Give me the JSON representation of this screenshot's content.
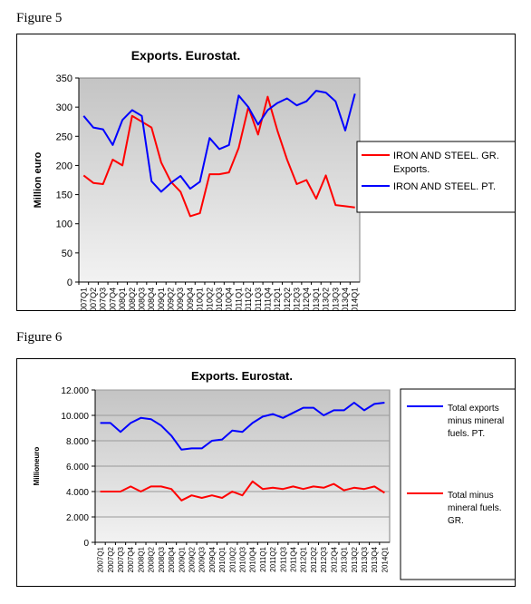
{
  "figures": [
    {
      "label": "Figure 5"
    },
    {
      "label": "Figure 6"
    }
  ],
  "chart_data": [
    {
      "type": "line",
      "title": "Exports. Eurostat.",
      "ylabel": "Million euro",
      "xlabel": "",
      "ylim": [
        0,
        350
      ],
      "yticks": [
        0,
        50,
        100,
        150,
        200,
        250,
        300,
        350
      ],
      "ytick_labels": [
        "0",
        "50",
        "100",
        "150",
        "200",
        "250",
        "300",
        "350"
      ],
      "grid": false,
      "legend_position": "right",
      "categories": [
        "2007Q1",
        "2007Q2",
        "2007Q3",
        "2007Q4",
        "2008Q1",
        "2008Q2",
        "2008Q3",
        "2008Q4",
        "2009Q1",
        "2009Q2",
        "2009Q3",
        "2009Q4",
        "2010Q1",
        "2010Q2",
        "2010Q3",
        "2010Q4",
        "2011Q1",
        "2011Q2",
        "2011Q3",
        "2011Q4",
        "2012Q1",
        "2012Q2",
        "2012Q3",
        "2012Q4",
        "2013Q1",
        "2013Q2",
        "2013Q3",
        "2013Q4",
        "2014Q1"
      ],
      "series": [
        {
          "name": "IRON AND STEEL. GR. Exports.",
          "color": "#ff0000",
          "values": [
            183,
            170,
            168,
            210,
            200,
            285,
            275,
            265,
            205,
            172,
            155,
            113,
            118,
            185,
            185,
            188,
            230,
            300,
            253,
            318,
            260,
            210,
            168,
            175,
            143,
            183,
            132,
            130,
            128
          ]
        },
        {
          "name": "IRON AND STEEL. PT.",
          "color": "#0000ff",
          "values": [
            285,
            265,
            262,
            235,
            278,
            295,
            285,
            173,
            155,
            170,
            182,
            160,
            172,
            247,
            228,
            235,
            320,
            300,
            270,
            295,
            307,
            315,
            303,
            310,
            328,
            325,
            310,
            260,
            323
          ]
        }
      ]
    },
    {
      "type": "line",
      "title": "Exports. Eurostat.",
      "ylabel": "Millioneuro",
      "xlabel": "",
      "ylim": [
        0,
        12000
      ],
      "yticks": [
        0,
        2000,
        4000,
        6000,
        8000,
        10000,
        12000
      ],
      "ytick_labels": [
        "0",
        "2.000",
        "4.000",
        "6.000",
        "8.000",
        "10.000",
        "12.000"
      ],
      "grid": true,
      "legend_position": "right",
      "categories": [
        "2007Q1",
        "2007Q2",
        "2007Q3",
        "2007Q4",
        "2008Q1",
        "2008Q2",
        "2008Q3",
        "2008Q4",
        "2009Q1",
        "2009Q2",
        "2009Q3",
        "2009Q4",
        "2010Q1",
        "2010Q2",
        "2010Q3",
        "2010Q4",
        "2011Q1",
        "2011Q2",
        "2011Q3",
        "2011Q4",
        "2012Q1",
        "2012Q2",
        "2012Q3",
        "2012Q4",
        "2013Q1",
        "2013Q2",
        "2013Q3",
        "2013Q4",
        "2014Q1"
      ],
      "series": [
        {
          "name": "Total exports minus mineral fuels. PT.",
          "color": "#0000ff",
          "values": [
            9400,
            9400,
            8700,
            9400,
            9800,
            9700,
            9200,
            8400,
            7300,
            7400,
            7400,
            8000,
            8100,
            8800,
            8700,
            9400,
            9900,
            10100,
            9800,
            10200,
            10600,
            10600,
            10000,
            10400,
            10400,
            11000,
            10400,
            10900,
            11000
          ]
        },
        {
          "name": "Total minus mineral fuels. GR.",
          "color": "#ff0000",
          "values": [
            4000,
            4000,
            4000,
            4400,
            4000,
            4400,
            4400,
            4200,
            3300,
            3700,
            3500,
            3700,
            3500,
            4000,
            3700,
            4800,
            4200,
            4300,
            4200,
            4400,
            4200,
            4400,
            4300,
            4600,
            4100,
            4300,
            4200,
            4400,
            3900
          ]
        }
      ]
    }
  ]
}
